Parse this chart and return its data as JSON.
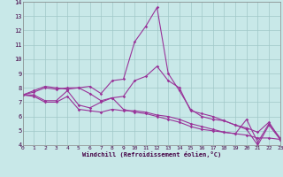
{
  "xlabel": "Windchill (Refroidissement éolien,°C)",
  "xlim": [
    0,
    23
  ],
  "ylim": [
    4,
    14
  ],
  "yticks": [
    4,
    5,
    6,
    7,
    8,
    9,
    10,
    11,
    12,
    13,
    14
  ],
  "xticks": [
    0,
    1,
    2,
    3,
    4,
    5,
    6,
    7,
    8,
    9,
    10,
    11,
    12,
    13,
    14,
    15,
    16,
    17,
    18,
    19,
    20,
    21,
    22,
    23
  ],
  "background_color": "#c8e8e8",
  "grid_color": "#a0c8c8",
  "line_color": "#993399",
  "lines": [
    [
      7.5,
      7.8,
      8.1,
      8.0,
      7.9,
      8.0,
      8.1,
      7.6,
      8.5,
      8.6,
      11.2,
      12.3,
      13.6,
      9.0,
      7.8,
      6.5,
      6.0,
      5.8,
      5.7,
      5.4,
      5.2,
      4.9,
      5.6,
      4.4
    ],
    [
      7.5,
      7.7,
      8.0,
      7.9,
      8.0,
      8.0,
      7.6,
      7.1,
      7.3,
      7.4,
      8.5,
      8.8,
      9.5,
      8.5,
      8.0,
      6.4,
      6.2,
      6.0,
      5.7,
      5.4,
      5.1,
      4.0,
      5.4,
      4.4
    ],
    [
      7.5,
      7.5,
      7.1,
      7.1,
      7.8,
      6.8,
      6.6,
      7.0,
      7.3,
      6.5,
      6.3,
      6.2,
      6.0,
      5.8,
      5.6,
      5.3,
      5.1,
      5.0,
      4.9,
      4.8,
      5.8,
      4.2,
      5.5,
      4.5
    ],
    [
      7.5,
      7.4,
      7.0,
      7.0,
      7.4,
      6.5,
      6.4,
      6.3,
      6.5,
      6.4,
      6.4,
      6.3,
      6.1,
      6.0,
      5.8,
      5.5,
      5.3,
      5.1,
      4.9,
      4.8,
      4.7,
      4.5,
      4.5,
      4.4
    ]
  ]
}
